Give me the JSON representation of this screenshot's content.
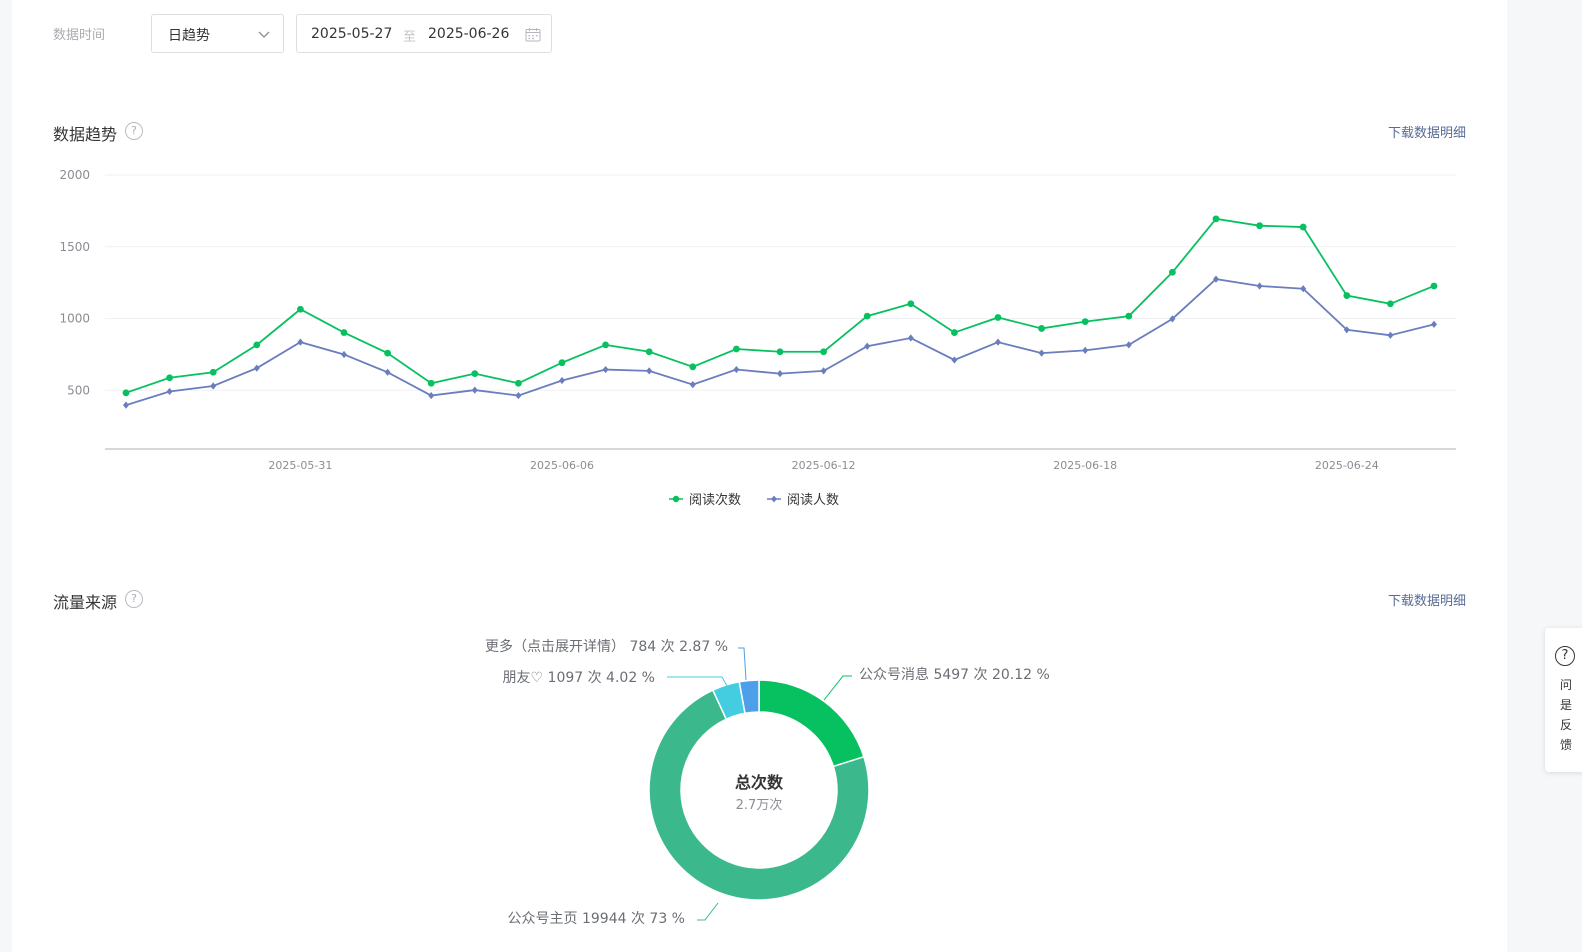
{
  "filter": {
    "label": "数据时间",
    "granularity": "日趋势",
    "date_start": "2025-05-27",
    "date_sep": "至",
    "date_end": "2025-06-26"
  },
  "trend": {
    "title": "数据趋势",
    "help": "?",
    "download": "下载数据明细"
  },
  "traffic": {
    "title": "流量来源",
    "help": "?",
    "download": "下载数据明细"
  },
  "side_card": {
    "icon": "?",
    "lines": [
      "问",
      "是",
      "反",
      "馈"
    ]
  },
  "chart_data": [
    {
      "type": "line",
      "title": "",
      "ylim": [
        0,
        2000
      ],
      "yticks": [
        500,
        1000,
        1500,
        2000
      ],
      "xtick_labels": [
        "2025-05-31",
        "2025-06-06",
        "2025-06-12",
        "2025-06-18",
        "2025-06-24"
      ],
      "x": [
        "2025-05-27",
        "2025-05-28",
        "2025-05-29",
        "2025-05-30",
        "2025-05-31",
        "2025-06-01",
        "2025-06-02",
        "2025-06-03",
        "2025-06-04",
        "2025-06-05",
        "2025-06-06",
        "2025-06-07",
        "2025-06-08",
        "2025-06-09",
        "2025-06-10",
        "2025-06-11",
        "2025-06-12",
        "2025-06-13",
        "2025-06-14",
        "2025-06-15",
        "2025-06-16",
        "2025-06-17",
        "2025-06-18",
        "2025-06-19",
        "2025-06-20",
        "2025-06-21",
        "2025-06-22",
        "2025-06-23",
        "2025-06-24",
        "2025-06-25",
        "2025-06-26"
      ],
      "series": [
        {
          "name": "阅读次数",
          "color": "#07c160",
          "marker": "circle",
          "values": [
            410,
            520,
            560,
            760,
            1020,
            850,
            700,
            480,
            550,
            480,
            630,
            760,
            710,
            600,
            730,
            710,
            710,
            970,
            1060,
            850,
            960,
            880,
            930,
            970,
            1290,
            1680,
            1630,
            1620,
            1120,
            1060,
            1190
          ]
        },
        {
          "name": "阅读人数",
          "color": "#6a7dbd",
          "marker": "diamond",
          "values": [
            320,
            420,
            460,
            590,
            780,
            690,
            560,
            390,
            430,
            390,
            500,
            580,
            570,
            470,
            580,
            550,
            570,
            750,
            810,
            650,
            780,
            700,
            720,
            760,
            950,
            1240,
            1190,
            1170,
            870,
            830,
            910
          ]
        }
      ],
      "grid": true,
      "legend": "bottom"
    },
    {
      "type": "pie",
      "donut": true,
      "center_title": "总次数",
      "center_value": "2.7万次",
      "slices": [
        {
          "label": "公众号消息 5497 次 20.12 %",
          "value": 20.12,
          "color": "#07c160"
        },
        {
          "label": "公众号主页 19944 次 73 %",
          "value": 73,
          "color": "#3bb98c"
        },
        {
          "label": "朋友♡ 1097 次 4.02 %",
          "value": 4.02,
          "color": "#44cce0"
        },
        {
          "label": "更多（点击展开详情） 784 次 2.87 %",
          "value": 2.87,
          "color": "#4c9fe8"
        }
      ]
    }
  ]
}
